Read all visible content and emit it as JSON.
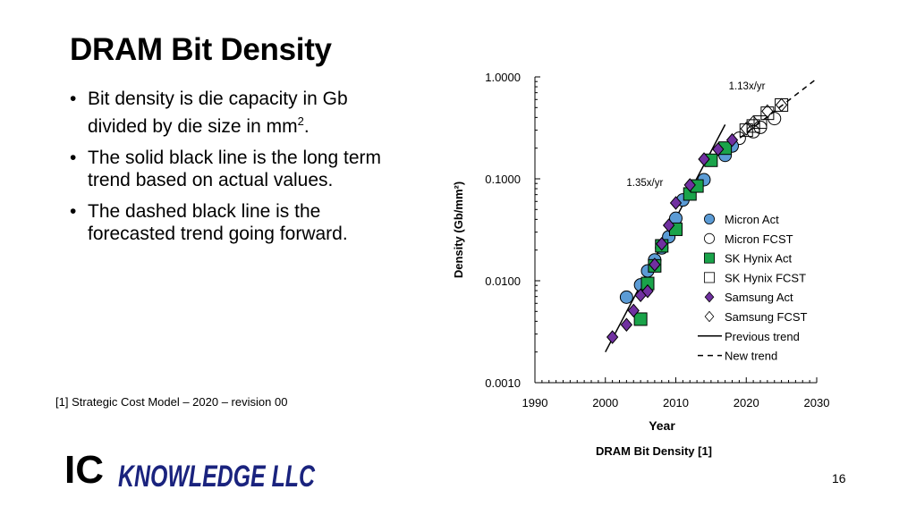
{
  "slide": {
    "title": "DRAM Bit Density",
    "bullets": [
      {
        "text": "Bit density is die capacity in Gb divided by die size in mm",
        "sup": "2",
        "tail": "."
      },
      {
        "text": "The solid black line is the long term trend based on actual values."
      },
      {
        "text": "The dashed black line is the forecasted trend going forward."
      }
    ],
    "reference": "[1] Strategic Cost Model – 2020 – revision 00",
    "caption": "DRAM Bit Density [1]",
    "page_number": "16",
    "logo": {
      "text": "IC KNOWLEDGE LLC",
      "part1": "IC",
      "part2": "KNOWLEDGE LLC",
      "color": "#1a237e"
    }
  },
  "chart_data": {
    "type": "scatter",
    "xlabel": "Year",
    "ylabel": "Density (Gb/mm²)",
    "xlim": [
      1990,
      2030
    ],
    "ylim": [
      0.001,
      1
    ],
    "yscale": "log",
    "xticks": [
      "1990",
      "2000",
      "2010",
      "2020",
      "2030"
    ],
    "yticks": [
      "0.0010",
      "0.0100",
      "0.1000",
      "1.0000"
    ],
    "grid": false,
    "legend": "right-center",
    "annotations": [
      {
        "text": "1.35x/yr",
        "x": 2003,
        "y": 0.085
      },
      {
        "text": "1.13x/yr",
        "x": 2017.5,
        "y": 0.75
      }
    ],
    "series": [
      {
        "name": "Micron Act",
        "marker": "circle",
        "fill": "#5b9bd5",
        "x": [
          2003,
          2005,
          2006,
          2007,
          2008,
          2009,
          2010,
          2011,
          2014,
          2017,
          2018
        ],
        "y": [
          0.0069,
          0.0091,
          0.0125,
          0.016,
          0.021,
          0.027,
          0.041,
          0.062,
          0.098,
          0.17,
          0.21
        ]
      },
      {
        "name": "Micron FCST",
        "marker": "circle",
        "fill": "none",
        "x": [
          2019,
          2021,
          2022,
          2024
        ],
        "y": [
          0.25,
          0.29,
          0.32,
          0.39
        ]
      },
      {
        "name": "SK Hynix Act",
        "marker": "square",
        "fill": "#1aa34a",
        "x": [
          2005,
          2006,
          2007,
          2008,
          2010,
          2012,
          2013,
          2015,
          2017
        ],
        "y": [
          0.0042,
          0.0094,
          0.014,
          0.022,
          0.032,
          0.071,
          0.085,
          0.152,
          0.2
        ]
      },
      {
        "name": "SK Hynix FCST",
        "marker": "square",
        "fill": "none",
        "x": [
          2020,
          2021,
          2022,
          2023,
          2025
        ],
        "y": [
          0.3,
          0.33,
          0.36,
          0.44,
          0.53
        ]
      },
      {
        "name": "Samsung Act",
        "marker": "diamond",
        "fill": "#7030a0",
        "x": [
          2001,
          2003,
          2004,
          2005,
          2006,
          2007,
          2008,
          2009,
          2010,
          2012,
          2014,
          2016,
          2018
        ],
        "y": [
          0.0028,
          0.0037,
          0.0051,
          0.0072,
          0.0079,
          0.0144,
          0.023,
          0.035,
          0.058,
          0.087,
          0.156,
          0.195,
          0.24
        ]
      },
      {
        "name": "Samsung FCST",
        "marker": "diamond",
        "fill": "none",
        "x": [
          2020,
          2021,
          2023,
          2025
        ],
        "y": [
          0.31,
          0.36,
          0.46,
          0.53
        ]
      },
      {
        "name": "Previous trend",
        "marker": "line",
        "dash": false,
        "x": [
          2000,
          2017
        ],
        "y": [
          0.002,
          0.34
        ]
      },
      {
        "name": "New trend",
        "marker": "line",
        "dash": true,
        "x": [
          2018,
          2030
        ],
        "y": [
          0.22,
          0.96
        ]
      }
    ]
  }
}
